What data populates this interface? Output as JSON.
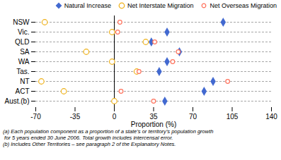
{
  "chart_data": {
    "type": "scatter",
    "categories": [
      "NSW",
      "Vic.",
      "QLD",
      "SA",
      "WA",
      "Tas.",
      "NT",
      "ACT",
      "Aust.(b)"
    ],
    "series": [
      {
        "name": "Natural Increase",
        "marker": "diamond",
        "values": [
          97,
          47,
          33,
          58,
          47,
          40,
          88,
          80,
          45
        ]
      },
      {
        "name": "Net Interstate Migration",
        "marker": "circle",
        "values": [
          -62,
          -2,
          28,
          -25,
          -2,
          20,
          -65,
          -45,
          0
        ]
      },
      {
        "name": "Net Overseas Migration",
        "marker": "circle",
        "values": [
          5,
          3,
          36,
          57,
          52,
          22,
          101,
          6,
          35
        ]
      }
    ],
    "xlim": [
      -70,
      140
    ],
    "xticks": [
      -70,
      -35,
      0,
      35,
      70,
      105,
      140
    ],
    "xlabel": "Proportion (%)",
    "annotations": [
      "(a) Each population component as a proportion of a state’s or territory’s population growth",
      " for 5 years ended 30 June 2006. Total growth includes intercensal error.",
      "(b) Includes Other Territories – see paragraph 2 of the Explanatory Notes."
    ],
    "grid": true
  }
}
